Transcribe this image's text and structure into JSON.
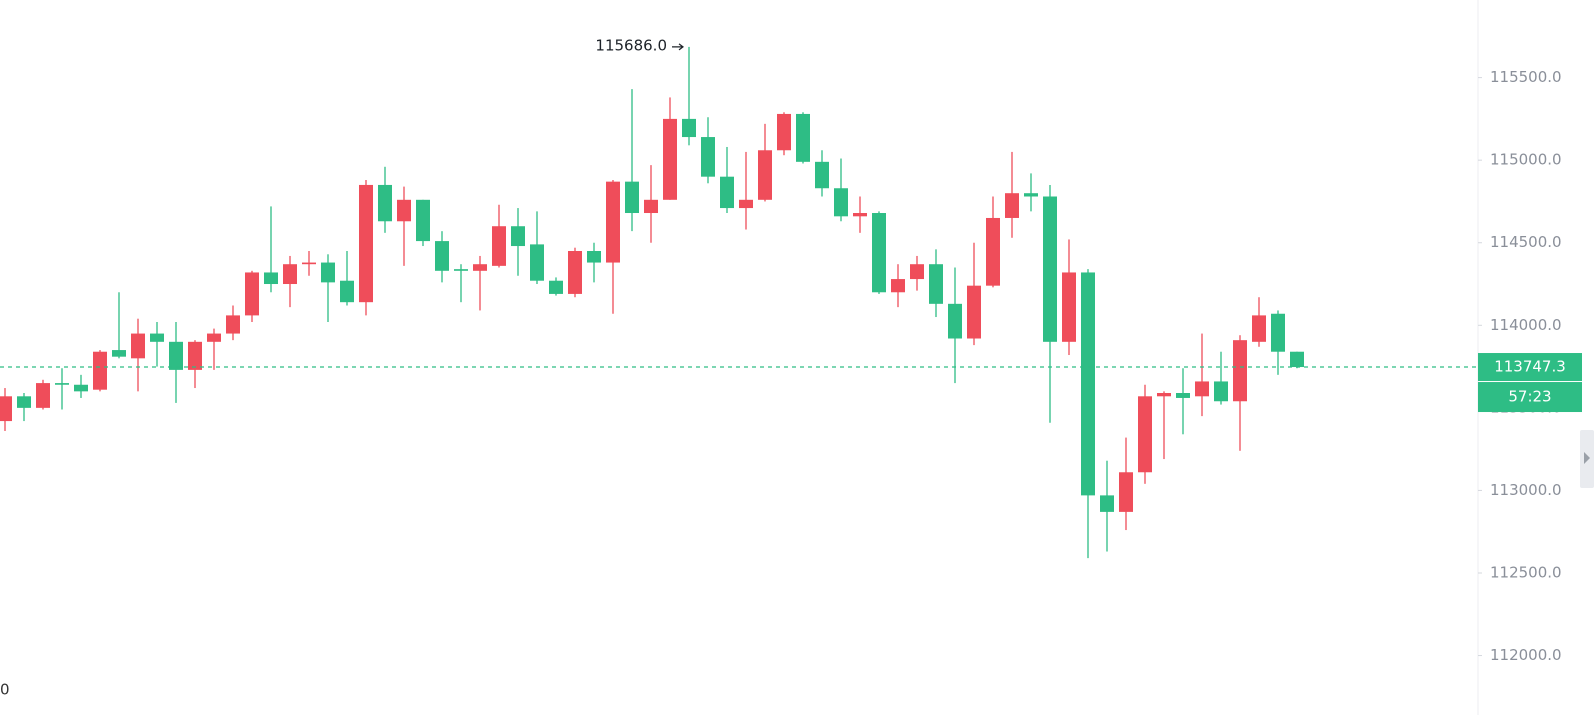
{
  "chart_data": {
    "type": "candlestick",
    "up_color": "#ef4d5a",
    "down_color": "#2ebd85",
    "open": [
      113420,
      113570,
      113500,
      113650,
      113640,
      113610,
      113850,
      113800,
      113950,
      113900,
      113730,
      113900,
      113950,
      114060,
      114320,
      114250,
      114370,
      114380,
      114270,
      114140,
      114850,
      114630,
      114760,
      114510,
      114340,
      114330,
      114360,
      114600,
      114490,
      114270,
      114190,
      114450,
      114380,
      114870,
      114680,
      114760,
      115250,
      115140,
      114900,
      114710,
      114760,
      115060,
      115280,
      114990,
      114830,
      114660,
      114680,
      114200,
      114280,
      114370,
      114130,
      113920,
      114240,
      114650,
      114800,
      114780,
      113900,
      114320,
      112970,
      112870,
      113110,
      113570,
      113590,
      113570,
      113660,
      113540,
      113900,
      114070,
      113840
    ],
    "high": [
      113620,
      113590,
      113670,
      113740,
      113700,
      113850,
      114200,
      114040,
      114020,
      114020,
      113910,
      113980,
      114120,
      114330,
      114720,
      114420,
      114450,
      114430,
      114450,
      114880,
      114960,
      114840,
      114760,
      114570,
      114370,
      114420,
      114730,
      114710,
      114690,
      114290,
      114470,
      114500,
      114880,
      115430,
      114970,
      115380,
      115686,
      115260,
      115080,
      115050,
      115220,
      115290,
      115290,
      115060,
      115010,
      114780,
      114690,
      114370,
      114420,
      114460,
      114350,
      114500,
      114780,
      115050,
      114920,
      114850,
      114520,
      114340,
      113180,
      113320,
      113640,
      113600,
      113740,
      113950,
      113840,
      113940,
      114170,
      114090,
      113840
    ],
    "low": [
      113360,
      113420,
      113490,
      113490,
      113560,
      113600,
      113800,
      113600,
      113750,
      113530,
      113620,
      113730,
      113910,
      114020,
      114200,
      114110,
      114300,
      114020,
      114120,
      114060,
      114560,
      114360,
      114480,
      114260,
      114140,
      114090,
      114350,
      114300,
      114250,
      114180,
      114170,
      114260,
      114070,
      114570,
      114500,
      114760,
      115090,
      114860,
      114680,
      114580,
      114750,
      115030,
      114980,
      114780,
      114630,
      114560,
      114190,
      114110,
      114210,
      114050,
      113650,
      113880,
      114230,
      114530,
      114690,
      113410,
      113820,
      112590,
      112630,
      112760,
      113040,
      113190,
      113340,
      113450,
      113520,
      113240,
      113870,
      113700,
      113740
    ],
    "close": [
      113570,
      113500,
      113650,
      113640,
      113600,
      113840,
      113810,
      113950,
      113900,
      113730,
      113900,
      113950,
      114060,
      114320,
      114250,
      114370,
      114380,
      114260,
      114140,
      114850,
      114630,
      114760,
      114510,
      114330,
      114330,
      114370,
      114600,
      114480,
      114270,
      114190,
      114450,
      114380,
      114870,
      114680,
      114760,
      115250,
      115140,
      114900,
      114710,
      114760,
      115060,
      115280,
      114990,
      114830,
      114660,
      114680,
      114200,
      114280,
      114370,
      114130,
      113920,
      114240,
      114650,
      114800,
      114780,
      113900,
      114320,
      112970,
      112870,
      113110,
      113570,
      113590,
      113560,
      113660,
      113540,
      113910,
      114060,
      113840,
      113747.3
    ],
    "high_annotation": "115686.0",
    "last_price": {
      "value": 113747.3,
      "label": "113747.3"
    },
    "countdown": "57:23",
    "x_label_fragment": "0",
    "ylim": [
      111640,
      115970
    ],
    "yticks": [
      {
        "value": 112000,
        "label": "112000.0"
      },
      {
        "value": 112500,
        "label": "112500.0"
      },
      {
        "value": 113000,
        "label": "113000.0"
      },
      {
        "value": 113500,
        "label": "113500.0"
      },
      {
        "value": 114000,
        "label": "114000.0"
      },
      {
        "value": 114500,
        "label": "114500.0"
      },
      {
        "value": 115000,
        "label": "115000.0"
      },
      {
        "value": 115500,
        "label": "115500.0"
      }
    ]
  }
}
